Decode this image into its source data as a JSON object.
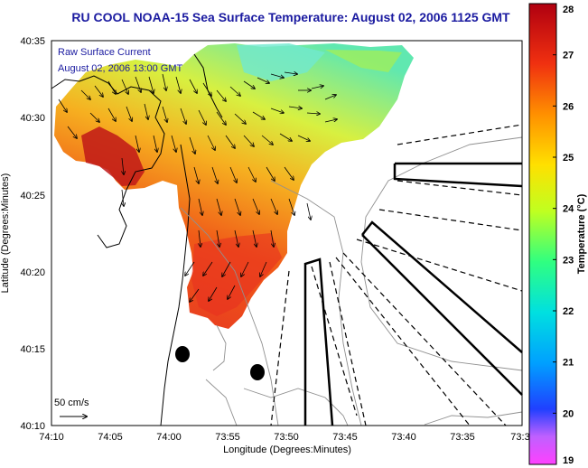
{
  "chart_data": {
    "type": "heatmap",
    "title": "RU COOL  NOAA-15  Sea Surface Temperature:  August 02, 2006 1125 GMT",
    "xlabel": "Longitude (Degrees:Minutes)",
    "ylabel": "Latitude (Degrees:Minutes)",
    "x_ticks": [
      "74:10",
      "74:05",
      "74:00",
      "73:55",
      "73:50",
      "73:45",
      "73:40",
      "73:35",
      "73:3"
    ],
    "y_ticks": [
      "40:10",
      "40:15",
      "40:20",
      "40:25",
      "40:30",
      "40:35"
    ],
    "colorbar": {
      "label": "Temperature (°C)",
      "range": [
        19,
        28
      ],
      "ticks": [
        "19",
        "20",
        "21",
        "22",
        "23",
        "24",
        "25",
        "26",
        "27",
        "28"
      ]
    },
    "legend": {
      "current_label": "Raw Surface Current",
      "current_time": "August 02, 2006 13:00 GMT",
      "scale_label": "50 cm/s"
    },
    "colors": {
      "title": "#1a1aa0",
      "land": "#ffffff",
      "warm": "#d02020",
      "mid": "#f0a020",
      "cool": "#40e0c0"
    }
  }
}
